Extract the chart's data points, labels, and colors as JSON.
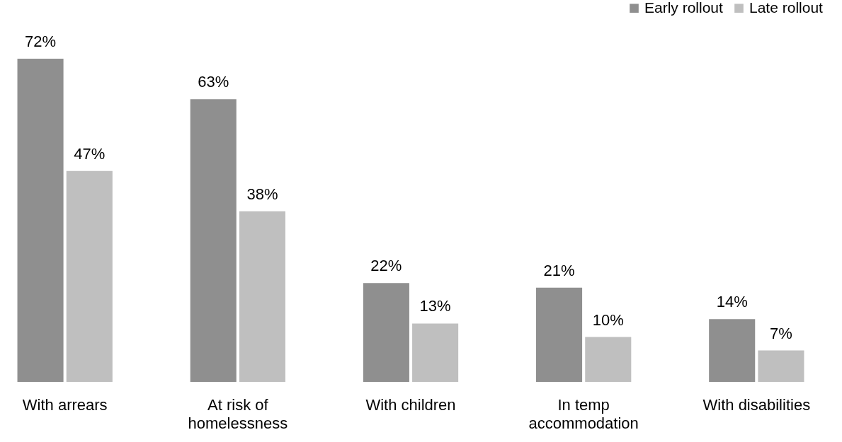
{
  "chart_data": {
    "type": "bar",
    "categories": [
      "With arrears",
      "At risk of homelessness",
      "With children",
      "In temp accommodation",
      "With disabilities"
    ],
    "series": [
      {
        "name": "Early rollout",
        "color": "#8f8f8f",
        "values": [
          72,
          63,
          22,
          21,
          14
        ],
        "value_labels": [
          "72%",
          "63%",
          "22%",
          "21%",
          "14%"
        ]
      },
      {
        "name": "Late rollout",
        "color": "#bfbfbf",
        "values": [
          47,
          38,
          13,
          10,
          7
        ],
        "value_labels": [
          "47%",
          "38%",
          "13%",
          "10%",
          "7%"
        ]
      }
    ],
    "legend": "top right",
    "grid": false
  }
}
